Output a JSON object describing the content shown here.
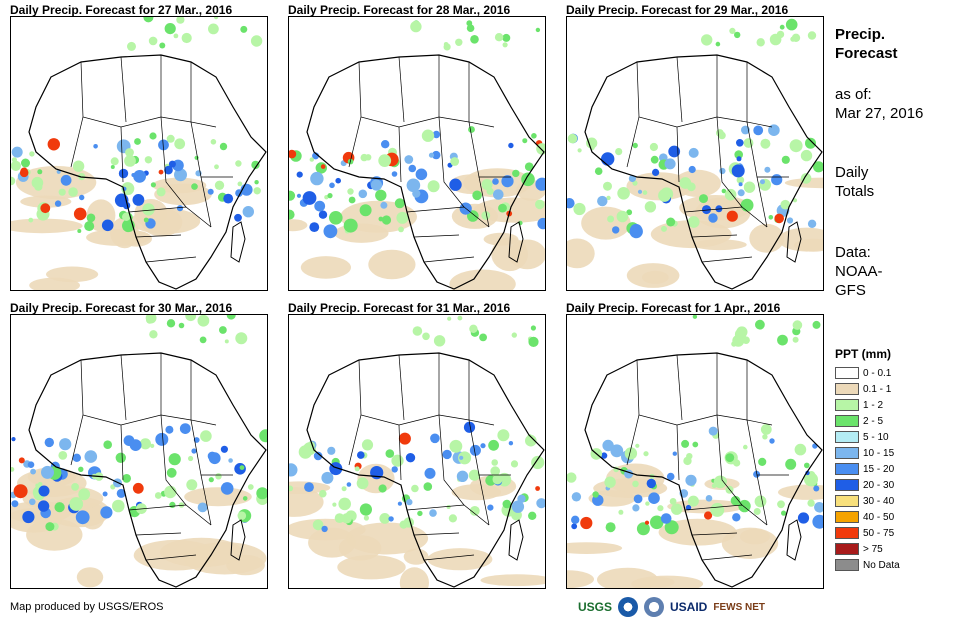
{
  "panels": [
    {
      "title": "Daily Precip. Forecast for 27 Mar., 2016"
    },
    {
      "title": "Daily Precip. Forecast for 28 Mar., 2016"
    },
    {
      "title": "Daily Precip. Forecast for 29 Mar., 2016"
    },
    {
      "title": "Daily Precip. Forecast for 30 Mar., 2016"
    },
    {
      "title": "Daily Precip. Forecast for 31 Mar., 2016"
    },
    {
      "title": "Daily Precip. Forecast for 1 Apr., 2016"
    }
  ],
  "sidebar": {
    "heading_line1": "Precip.",
    "heading_line2": "Forecast",
    "asof_label": "as of:",
    "asof_date": "Mar 27, 2016",
    "totals_line1": "Daily",
    "totals_line2": "Totals",
    "data_line1": "Data:",
    "data_line2": "NOAA-",
    "data_line3": "GFS"
  },
  "legend": {
    "title": "PPT (mm)",
    "items": [
      {
        "label": "0 - 0.1",
        "color": "#ffffff"
      },
      {
        "label": "0.1 - 1",
        "color": "#ecd9b9"
      },
      {
        "label": "1 - 2",
        "color": "#b7f5a6"
      },
      {
        "label": "2 - 5",
        "color": "#6be36b"
      },
      {
        "label": "5 - 10",
        "color": "#b4ecf4"
      },
      {
        "label": "10 - 15",
        "color": "#7cb6ee"
      },
      {
        "label": "15 - 20",
        "color": "#4a8ef0"
      },
      {
        "label": "20 - 30",
        "color": "#1f5ee6"
      },
      {
        "label": "30 - 40",
        "color": "#f8e07c"
      },
      {
        "label": "40 - 50",
        "color": "#f5a300"
      },
      {
        "label": "50 - 75",
        "color": "#f03a0c"
      },
      {
        "label": "> 75",
        "color": "#a81b1b"
      },
      {
        "label": "No Data",
        "color": "#8c8c8c"
      }
    ]
  },
  "footer": {
    "credit": "Map produced by USGS/EROS",
    "logo_usgs": "USGS",
    "logo_usaid": "USAID",
    "logo_fews": "FEWS NET"
  }
}
